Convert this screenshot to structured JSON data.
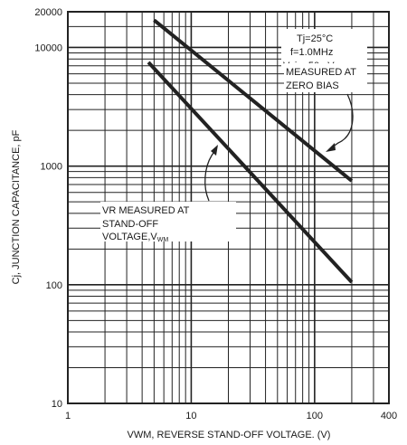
{
  "chart_data": {
    "type": "line",
    "title": "",
    "xlabel": "VWM, REVERSE STAND-OFF  VOLTAGE. (V)",
    "ylabel": "Cj, JUNCTION CAPACITANCE, pF",
    "x_scale": "log",
    "y_scale": "log",
    "xlim": [
      1,
      400
    ],
    "ylim": [
      10,
      20000
    ],
    "grid": true,
    "x_ticks": [
      {
        "value": 1,
        "label": "1"
      },
      {
        "value": 10,
        "label": "10"
      },
      {
        "value": 100,
        "label": "100"
      },
      {
        "value": 400,
        "label": "400"
      }
    ],
    "y_ticks": [
      {
        "value": 10,
        "label": "10"
      },
      {
        "value": 100,
        "label": "100"
      },
      {
        "value": 1000,
        "label": "1000"
      },
      {
        "value": 10000,
        "label": "10000"
      },
      {
        "value": 20000,
        "label": "20000"
      }
    ],
    "series": [
      {
        "label": "MEASURED AT ZERO BIAS",
        "x": [
          5,
          200
        ],
        "y": [
          17000,
          750
        ]
      },
      {
        "label": "VR MEASURED AT STAND-OFF VOLTAGE,V",
        "x": [
          4.5,
          200
        ],
        "y": [
          7500,
          105
        ]
      }
    ],
    "conditions": {
      "line1": "Tj=25°C",
      "line2": "f=1.0MHz",
      "line3": "Vsig=50mVp-p"
    },
    "annotations": {
      "zero_bias_line1": "MEASURED AT",
      "zero_bias_line2": "ZERO BIAS",
      "standoff_line1": "VR MEASURED AT",
      "standoff_line2": "STAND-OFF",
      "standoff_line3": "VOLTAGE,V",
      "standoff_subscript": "WM"
    }
  }
}
